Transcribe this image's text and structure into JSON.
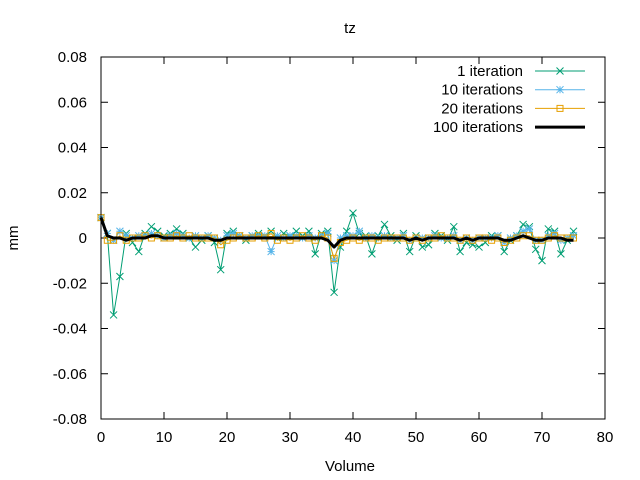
{
  "chart_data": {
    "type": "line",
    "title": "tz",
    "xlabel": "Volume",
    "ylabel": "mm",
    "xlim": [
      0,
      80
    ],
    "ylim": [
      -0.08,
      0.08
    ],
    "xticks": [
      0,
      10,
      20,
      30,
      40,
      50,
      60,
      70,
      80
    ],
    "yticks": [
      -0.08,
      -0.06,
      -0.04,
      -0.02,
      0,
      0.02,
      0.04,
      0.06,
      0.08
    ],
    "xtick_labels": [
      "0",
      "10",
      "20",
      "30",
      "40",
      "50",
      "60",
      "70",
      "80"
    ],
    "ytick_labels": [
      "-0.08",
      "-0.06",
      "-0.04",
      "-0.02",
      "0",
      "0.02",
      "0.04",
      "0.06",
      "0.08"
    ],
    "grid": false,
    "legend_position": "top-right",
    "x": [
      0,
      1,
      2,
      3,
      4,
      5,
      6,
      7,
      8,
      9,
      10,
      11,
      12,
      13,
      14,
      15,
      16,
      17,
      18,
      19,
      20,
      21,
      22,
      23,
      24,
      25,
      26,
      27,
      28,
      29,
      30,
      31,
      32,
      33,
      34,
      35,
      36,
      37,
      38,
      39,
      40,
      41,
      42,
      43,
      44,
      45,
      46,
      47,
      48,
      49,
      50,
      51,
      52,
      53,
      54,
      55,
      56,
      57,
      58,
      59,
      60,
      61,
      62,
      63,
      64,
      65,
      66,
      67,
      68,
      69,
      70,
      71,
      72,
      73,
      74,
      75
    ],
    "series": [
      {
        "name": "1 iteration",
        "color": "#009e73",
        "marker": "x",
        "line_width": 1,
        "values": [
          0.009,
          0.002,
          -0.034,
          -0.017,
          0.002,
          -0.002,
          -0.006,
          0.002,
          0.005,
          0.003,
          0.001,
          0.002,
          0.004,
          0.002,
          0.0,
          -0.004,
          -0.001,
          0.001,
          -0.002,
          -0.014,
          0.002,
          0.003,
          0.001,
          -0.001,
          0.001,
          0.002,
          0.001,
          0.003,
          0.0,
          0.002,
          0.001,
          0.003,
          0.001,
          0.003,
          -0.007,
          0.002,
          0.003,
          -0.024,
          -0.004,
          0.003,
          0.011,
          0.002,
          0.001,
          -0.007,
          0.001,
          0.006,
          0.001,
          -0.001,
          0.002,
          -0.006,
          0.001,
          -0.004,
          -0.003,
          0.002,
          0.001,
          -0.001,
          0.005,
          -0.006,
          -0.002,
          -0.003,
          -0.004,
          -0.002,
          0.001,
          0.001,
          -0.006,
          -0.001,
          0.001,
          0.006,
          0.005,
          -0.005,
          -0.01,
          0.004,
          0.003,
          -0.007,
          -0.001,
          0.003
        ]
      },
      {
        "name": "10 iterations",
        "color": "#56b4e9",
        "marker": "star",
        "line_width": 1,
        "values": [
          0.009,
          0.002,
          -0.001,
          0.003,
          0.001,
          0.0,
          0.001,
          0.001,
          0.002,
          0.001,
          0.0,
          0.001,
          0.002,
          0.001,
          0.0,
          0.001,
          0.0,
          0.001,
          0.0,
          -0.001,
          0.001,
          0.002,
          0.001,
          0.0,
          0.001,
          0.001,
          0.001,
          -0.006,
          0.001,
          0.0,
          0.001,
          0.001,
          0.0,
          0.001,
          0.0,
          0.001,
          0.002,
          -0.01,
          0.0,
          0.001,
          0.001,
          0.003,
          0.0,
          0.001,
          0.0,
          0.001,
          0.0,
          0.0,
          0.001,
          -0.001,
          0.0,
          0.0,
          0.0,
          0.001,
          0.0,
          0.0,
          0.001,
          -0.001,
          0.0,
          -0.001,
          0.0,
          0.0,
          0.0,
          0.001,
          -0.002,
          0.0,
          0.001,
          0.003,
          0.004,
          -0.001,
          -0.001,
          0.001,
          0.002,
          -0.001,
          0.0,
          0.001
        ]
      },
      {
        "name": "20 iterations",
        "color": "#e69f00",
        "marker": "square",
        "line_width": 1,
        "values": [
          0.009,
          -0.001,
          -0.001,
          0.001,
          -0.001,
          0.0,
          0.0,
          0.001,
          0.0,
          0.001,
          0.0,
          0.0,
          0.001,
          0.0,
          0.001,
          0.0,
          0.0,
          0.0,
          0.0,
          -0.003,
          -0.001,
          0.0,
          0.001,
          0.0,
          0.0,
          0.001,
          0.0,
          0.002,
          -0.001,
          0.0,
          -0.001,
          0.0,
          0.001,
          0.0,
          -0.001,
          0.001,
          0.0,
          -0.009,
          -0.002,
          -0.001,
          0.0,
          -0.001,
          0.0,
          0.0,
          -0.001,
          0.0,
          0.0,
          0.0,
          0.0,
          -0.001,
          0.0,
          -0.001,
          0.0,
          0.0,
          0.001,
          0.0,
          0.0,
          -0.001,
          0.0,
          -0.001,
          0.0,
          0.0,
          -0.001,
          0.0,
          -0.002,
          -0.001,
          0.0,
          0.001,
          0.001,
          -0.001,
          -0.001,
          0.0,
          0.001,
          0.0,
          0.0,
          0.0
        ]
      },
      {
        "name": "100 iterations",
        "color": "#000000",
        "marker": "none",
        "line_width": 3,
        "values": [
          0.009,
          0.001,
          0.0,
          0.0,
          -0.001,
          0.0,
          0.0,
          0.0,
          0.001,
          0.001,
          0.0,
          0.0,
          0.0,
          0.0,
          0.0,
          0.0,
          0.0,
          0.0,
          -0.001,
          -0.001,
          0.0,
          0.0,
          0.0,
          0.0,
          0.0,
          0.0,
          0.0,
          0.0,
          0.0,
          0.0,
          0.0,
          0.0,
          0.0,
          0.0,
          0.0,
          0.0,
          -0.001,
          -0.004,
          -0.001,
          0.0,
          0.0,
          0.0,
          0.0,
          0.0,
          0.0,
          0.0,
          0.0,
          0.0,
          0.0,
          -0.001,
          0.0,
          -0.001,
          0.0,
          0.0,
          0.0,
          0.0,
          0.0,
          -0.001,
          0.0,
          -0.001,
          0.0,
          0.0,
          0.0,
          0.0,
          -0.001,
          -0.001,
          0.0,
          0.001,
          0.0,
          -0.001,
          -0.001,
          0.0,
          0.0,
          0.0,
          -0.001,
          -0.001
        ]
      }
    ]
  }
}
